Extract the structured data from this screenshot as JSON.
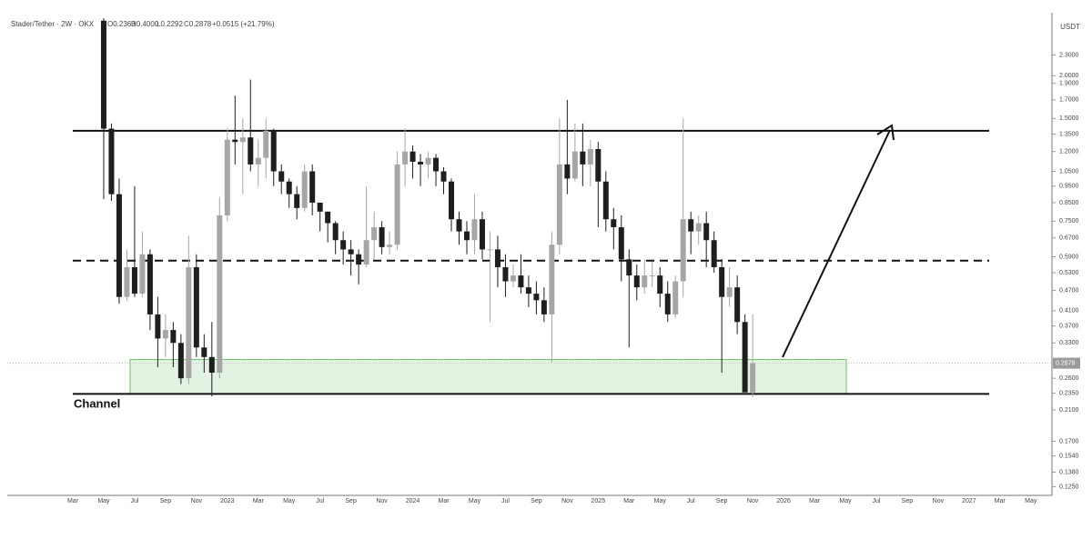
{
  "chart_data": {
    "type": "candlestick",
    "header": {
      "symbol": "Stader/Tether · 2W · OKX",
      "ohlc": [
        "O0.2363",
        "H0.4000",
        "L0.2292",
        "C0.2878"
      ],
      "change": "+0.0515 (+21.79%)"
    },
    "currency": "USDT",
    "last_price_label": {
      "value": 0.2878,
      "label": "0.2878"
    },
    "annotation": "Channel",
    "log_scale": true,
    "up_color": "#a6a6a6",
    "down_color": "#1e1e1e",
    "categories": [
      "Mar",
      null,
      null,
      null,
      "May",
      null,
      null,
      null,
      "Jul",
      null,
      null,
      null,
      "Sep",
      null,
      null,
      null,
      "Nov",
      null,
      null,
      null,
      "2023",
      null,
      null,
      null,
      "Mar",
      null,
      null,
      null,
      "May",
      null,
      null,
      null,
      "Jul",
      null,
      null,
      null,
      "Sep",
      null,
      null,
      null,
      "Nov",
      null,
      null,
      null,
      "2024",
      null,
      null,
      null,
      "Mar",
      null,
      null,
      null,
      "May",
      null,
      null,
      null,
      "Jul",
      null,
      null,
      null,
      "Sep",
      null,
      null,
      null,
      "Nov",
      null,
      null,
      null,
      "2025",
      null,
      null,
      null,
      "Mar",
      null,
      null,
      null,
      "May",
      null,
      null,
      null,
      "Jul",
      null,
      null,
      null,
      "Sep",
      null,
      null,
      null,
      "Nov",
      null,
      null,
      null,
      "2026",
      null,
      null,
      null,
      "Mar",
      null,
      null,
      null,
      "May",
      null,
      null,
      null,
      "Jul",
      null,
      null,
      null,
      "Sep",
      null,
      null,
      null,
      "Nov",
      null,
      null,
      null,
      "2027",
      null,
      null,
      null,
      "Mar",
      null,
      null,
      null,
      "May"
    ],
    "open": [
      null,
      null,
      null,
      null,
      2.9,
      1.4,
      0.9,
      0.45,
      0.55,
      0.46,
      0.6,
      0.4,
      0.34,
      0.36,
      0.33,
      0.26,
      0.55,
      0.32,
      0.3,
      0.27,
      0.78,
      1.3,
      1.28,
      1.32,
      1.1,
      1.15,
      1.38,
      1.05,
      0.98,
      0.9,
      0.82,
      1.05,
      0.85,
      0.8,
      0.74,
      0.66,
      0.62,
      0.6,
      0.56,
      0.66,
      0.72,
      0.63,
      0.64,
      1.1,
      1.2,
      1.12,
      1.1,
      1.15,
      1.05,
      0.98,
      0.76,
      0.7,
      0.66,
      0.76,
      0.62,
      0.62,
      0.55,
      0.5,
      0.52,
      0.48,
      0.46,
      0.44,
      0.4,
      0.64,
      1.1,
      1.0,
      1.2,
      1.1,
      1.22,
      0.98,
      0.76,
      0.72,
      0.58,
      0.52,
      0.48,
      0.52,
      0.52,
      0.46,
      0.4,
      0.5,
      0.76,
      0.7,
      0.74,
      0.66,
      0.55,
      0.45,
      0.48,
      0.38,
      0.2363,
      null,
      null,
      null,
      null,
      null,
      null,
      null,
      null,
      null,
      null,
      null,
      null,
      null,
      null,
      null,
      null,
      null,
      null,
      null,
      null,
      null,
      null,
      null,
      null,
      null,
      null,
      null,
      null,
      null,
      null,
      null,
      null,
      null,
      null,
      null,
      null
    ],
    "high": [
      null,
      null,
      null,
      null,
      2.95,
      1.45,
      1.0,
      0.62,
      0.95,
      0.7,
      0.62,
      0.45,
      0.4,
      0.38,
      0.35,
      0.68,
      0.6,
      0.35,
      0.38,
      0.88,
      1.4,
      1.75,
      1.5,
      1.95,
      1.3,
      1.5,
      1.4,
      1.1,
      1.0,
      0.95,
      1.1,
      1.1,
      0.85,
      0.8,
      0.75,
      0.7,
      0.66,
      0.62,
      0.95,
      0.8,
      0.75,
      0.7,
      1.2,
      1.4,
      1.25,
      1.18,
      1.2,
      1.18,
      1.08,
      1.0,
      0.8,
      0.75,
      0.9,
      0.8,
      0.7,
      0.68,
      0.6,
      0.56,
      0.6,
      0.52,
      0.5,
      0.48,
      0.7,
      1.5,
      1.7,
      1.45,
      1.45,
      1.3,
      1.28,
      1.05,
      0.82,
      0.78,
      0.62,
      0.56,
      0.58,
      0.57,
      0.55,
      0.5,
      0.52,
      1.5,
      0.8,
      0.78,
      0.8,
      0.7,
      0.58,
      0.55,
      0.52,
      0.4,
      0.4,
      null,
      null,
      null,
      null,
      null,
      null,
      null,
      null,
      null,
      null,
      null,
      null,
      null,
      null,
      null,
      null,
      null,
      null,
      null,
      null,
      null,
      null,
      null,
      null,
      null,
      null,
      null,
      null,
      null,
      null,
      null,
      null,
      null,
      null,
      null,
      null
    ],
    "low": [
      null,
      null,
      null,
      null,
      0.87,
      0.86,
      0.43,
      0.44,
      0.45,
      0.45,
      0.36,
      0.28,
      0.3,
      0.28,
      0.25,
      0.25,
      0.3,
      0.27,
      0.23,
      0.26,
      0.75,
      1.1,
      0.9,
      1.05,
      0.95,
      1.0,
      0.95,
      0.9,
      0.82,
      0.76,
      0.8,
      0.78,
      0.7,
      0.65,
      0.6,
      0.56,
      0.52,
      0.49,
      0.55,
      0.58,
      0.6,
      0.6,
      0.62,
      0.95,
      1.0,
      0.95,
      1.0,
      0.95,
      0.9,
      0.7,
      0.64,
      0.6,
      0.6,
      0.58,
      0.38,
      0.48,
      0.45,
      0.48,
      0.46,
      0.42,
      0.4,
      0.38,
      0.29,
      0.6,
      0.9,
      0.98,
      0.95,
      0.95,
      0.72,
      0.7,
      0.62,
      0.5,
      0.32,
      0.44,
      0.46,
      0.48,
      0.42,
      0.38,
      0.39,
      0.45,
      0.6,
      0.64,
      0.55,
      0.53,
      0.27,
      0.42,
      0.35,
      0.24,
      0.2292,
      null,
      null,
      null,
      null,
      null,
      null,
      null,
      null,
      null,
      null,
      null,
      null,
      null,
      null,
      null,
      null,
      null,
      null,
      null,
      null,
      null,
      null,
      null,
      null,
      null,
      null,
      null,
      null,
      null,
      null,
      null,
      null,
      null,
      null,
      null,
      null
    ],
    "close": [
      null,
      null,
      null,
      null,
      1.4,
      0.9,
      0.45,
      0.55,
      0.46,
      0.6,
      0.4,
      0.34,
      0.36,
      0.33,
      0.26,
      0.55,
      0.32,
      0.3,
      0.27,
      0.78,
      1.3,
      1.28,
      1.32,
      1.1,
      1.15,
      1.38,
      1.05,
      0.98,
      0.9,
      0.82,
      1.05,
      0.85,
      0.8,
      0.74,
      0.66,
      0.62,
      0.6,
      0.56,
      0.66,
      0.72,
      0.63,
      0.64,
      1.1,
      1.2,
      1.12,
      1.1,
      1.15,
      1.05,
      0.98,
      0.76,
      0.7,
      0.66,
      0.76,
      0.62,
      0.62,
      0.55,
      0.5,
      0.52,
      0.48,
      0.46,
      0.44,
      0.4,
      0.64,
      1.1,
      1.0,
      1.2,
      1.1,
      1.22,
      0.98,
      0.76,
      0.72,
      0.58,
      0.52,
      0.48,
      0.52,
      0.52,
      0.46,
      0.4,
      0.5,
      0.76,
      0.7,
      0.74,
      0.66,
      0.55,
      0.45,
      0.48,
      0.38,
      0.2363,
      0.2878,
      null,
      null,
      null,
      null,
      null,
      null,
      null,
      null,
      null,
      null,
      null,
      null,
      null,
      null,
      null,
      null,
      null,
      null,
      null,
      null,
      null,
      null,
      null,
      null,
      null,
      null,
      null,
      null,
      null,
      null,
      null,
      null,
      null,
      null,
      null,
      null
    ],
    "levels": [
      {
        "value": 1.38,
        "style": "solid"
      },
      {
        "value": 0.575,
        "style": "dashed"
      },
      {
        "value": 0.234,
        "style": "solid"
      }
    ],
    "zone": {
      "ylim": [
        0.234,
        0.295
      ],
      "color": "#6cc36a"
    },
    "ylim": [
      0.118,
      2.95
    ],
    "yticks": [
      {
        "value": 2.3,
        "label": "2.3000"
      },
      {
        "value": 2.0,
        "label": "2.0000"
      },
      {
        "value": 1.9,
        "label": "1.9000"
      },
      {
        "value": 1.7,
        "label": "1.7000"
      },
      {
        "value": 1.5,
        "label": "1.5000"
      },
      {
        "value": 1.35,
        "label": "1.3500"
      },
      {
        "value": 1.2,
        "label": "1.2000"
      },
      {
        "value": 1.05,
        "label": "1.0500"
      },
      {
        "value": 0.95,
        "label": "0.9500"
      },
      {
        "value": 0.85,
        "label": "0.8500"
      },
      {
        "value": 0.75,
        "label": "0.7500"
      },
      {
        "value": 0.67,
        "label": "0.6700"
      },
      {
        "value": 0.59,
        "label": "0.5900"
      },
      {
        "value": 0.53,
        "label": "0.5300"
      },
      {
        "value": 0.47,
        "label": "0.4700"
      },
      {
        "value": 0.41,
        "label": "0.4100"
      },
      {
        "value": 0.37,
        "label": "0.3700"
      },
      {
        "value": 0.33,
        "label": "0.3300"
      },
      {
        "value": 0.26,
        "label": "0.2600"
      },
      {
        "value": 0.235,
        "label": "0.2350"
      },
      {
        "value": 0.21,
        "label": "0.2100"
      },
      {
        "value": 0.17,
        "label": "0.1700"
      },
      {
        "value": 0.154,
        "label": "0.1540"
      },
      {
        "value": 0.138,
        "label": "0.1380"
      },
      {
        "value": 0.125,
        "label": "0.1250"
      }
    ]
  }
}
